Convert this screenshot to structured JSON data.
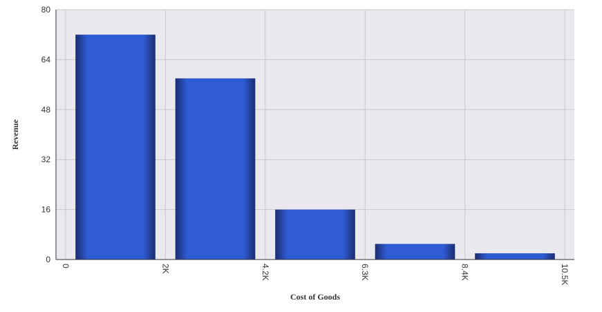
{
  "chart_data": {
    "type": "histogram",
    "x_label": "Cost of Goods",
    "y_label": "Revenue",
    "bins": [
      0,
      2100,
      4200,
      6300,
      8400,
      10500
    ],
    "values": [
      72,
      58,
      16,
      5,
      2
    ],
    "color": "#2f5bd6",
    "xlim": [
      -200,
      10700
    ],
    "xticks": [
      0,
      {
        "value": 2100,
        "label": "2K"
      },
      {
        "value": 4200,
        "label": "4.2K"
      },
      {
        "value": 6300,
        "label": "6.3K"
      },
      {
        "value": 8400,
        "label": "8.4K"
      },
      {
        "value": 10500,
        "label": "10.5K"
      }
    ],
    "ylim": [
      0,
      80
    ],
    "yticks": [
      0,
      16,
      32,
      48,
      64,
      80
    ],
    "grid": true
  }
}
